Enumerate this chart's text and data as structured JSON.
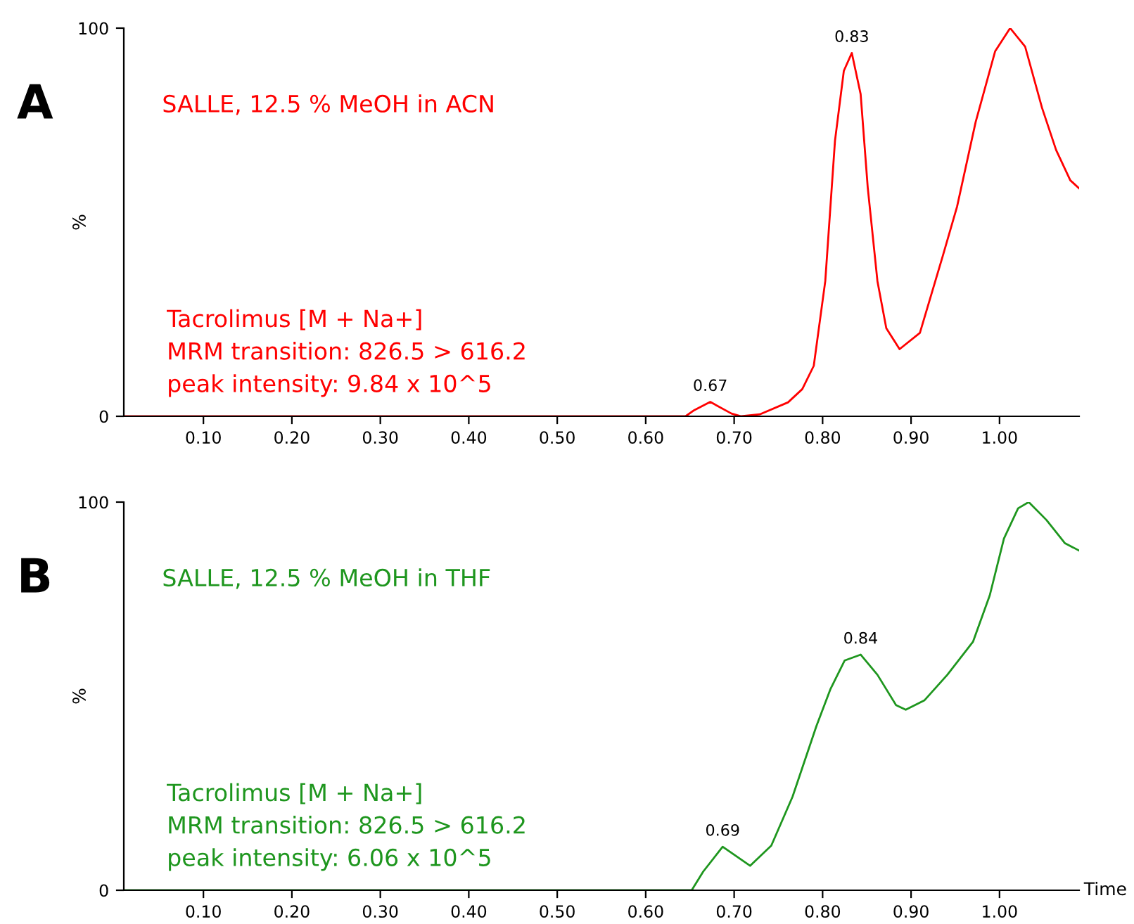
{
  "chart_data": [
    {
      "type": "line",
      "ylabel": "%",
      "xlim": [
        0.01,
        1.09
      ],
      "ylim": [
        0,
        100
      ],
      "yticks": [
        0,
        100
      ],
      "xticks": [
        {
          "value": 0.1,
          "label": "0.10"
        },
        {
          "value": 0.2,
          "label": "0.20"
        },
        {
          "value": 0.3,
          "label": "0.30"
        },
        {
          "value": 0.4,
          "label": "0.40"
        },
        {
          "value": 0.5,
          "label": "0.50"
        },
        {
          "value": 0.6,
          "label": "0.60"
        },
        {
          "value": 0.7,
          "label": "0.70"
        },
        {
          "value": 0.8,
          "label": "0.80"
        },
        {
          "value": 0.9,
          "label": "0.90"
        },
        {
          "value": 1.0,
          "label": "1.00"
        }
      ],
      "grid": false,
      "legend": false,
      "marker": "none",
      "line_style": "solid",
      "series": [
        {
          "color": "#ff0000",
          "x": [
            0.01,
            0.645,
            0.655,
            0.673,
            0.697,
            0.708,
            0.729,
            0.761,
            0.777,
            0.79,
            0.803,
            0.814,
            0.824,
            0.833,
            0.843,
            0.851,
            0.862,
            0.872,
            0.887,
            0.91,
            0.936,
            0.952,
            0.973,
            0.995,
            1.012,
            1.029,
            1.048,
            1.064,
            1.08,
            1.09
          ],
          "values": [
            0,
            0,
            1.6,
            3.7,
            0.7,
            0,
            0.5,
            3.6,
            7,
            13,
            34.8,
            71,
            89,
            93.6,
            83,
            59,
            34.8,
            22.7,
            17.3,
            21.5,
            41.4,
            54,
            75.8,
            94,
            100,
            95.2,
            79.5,
            68.6,
            60.8,
            58.7
          ]
        }
      ],
      "annotations": [
        "A",
        "SALLE, 12.5 % MeOH in ACN",
        "Tacrolimus [M + Na+]\nMRM transition: 826.5 > 616.2\npeak intensity: 9.84 x 10^5",
        {
          "text": "0.67",
          "x": 0.673,
          "y": 3.7
        },
        {
          "text": "0.83",
          "x": 0.833,
          "y": 93.6
        }
      ]
    },
    {
      "type": "line",
      "ylabel": "%",
      "xlabel": "Time",
      "xlim": [
        0.01,
        1.09
      ],
      "ylim": [
        0,
        100
      ],
      "yticks": [
        0,
        100
      ],
      "xticks": [
        {
          "value": 0.1,
          "label": "0.10"
        },
        {
          "value": 0.2,
          "label": "0.20"
        },
        {
          "value": 0.3,
          "label": "0.30"
        },
        {
          "value": 0.4,
          "label": "0.40"
        },
        {
          "value": 0.5,
          "label": "0.50"
        },
        {
          "value": 0.6,
          "label": "0.60"
        },
        {
          "value": 0.7,
          "label": "0.70"
        },
        {
          "value": 0.8,
          "label": "0.80"
        },
        {
          "value": 0.9,
          "label": "0.90"
        },
        {
          "value": 1.0,
          "label": "1.00"
        }
      ],
      "grid": false,
      "legend": false,
      "marker": "none",
      "line_style": "solid",
      "series": [
        {
          "color": "#1e961e",
          "x": [
            0.01,
            0.652,
            0.665,
            0.687,
            0.718,
            0.742,
            0.766,
            0.793,
            0.809,
            0.825,
            0.843,
            0.862,
            0.883,
            0.894,
            0.915,
            0.941,
            0.97,
            0.989,
            1.005,
            1.021,
            1.033,
            1.053,
            1.074,
            1.09
          ],
          "values": [
            0,
            0,
            4.8,
            11.2,
            6.3,
            11.5,
            24.1,
            42.3,
            51.9,
            59.2,
            60.7,
            55.5,
            47.7,
            46.5,
            48.9,
            55.5,
            64,
            76,
            90.6,
            98.4,
            100,
            95.4,
            89.4,
            87.5
          ]
        }
      ],
      "annotations": [
        "B",
        "SALLE, 12.5 % MeOH in THF",
        "Tacrolimus [M + Na+]\nMRM transition: 826.5 > 616.2\npeak intensity: 6.06 x 10^5",
        {
          "text": "0.69",
          "x": 0.687,
          "y": 11.2
        },
        {
          "text": "0.84",
          "x": 0.843,
          "y": 60.7
        }
      ]
    }
  ]
}
